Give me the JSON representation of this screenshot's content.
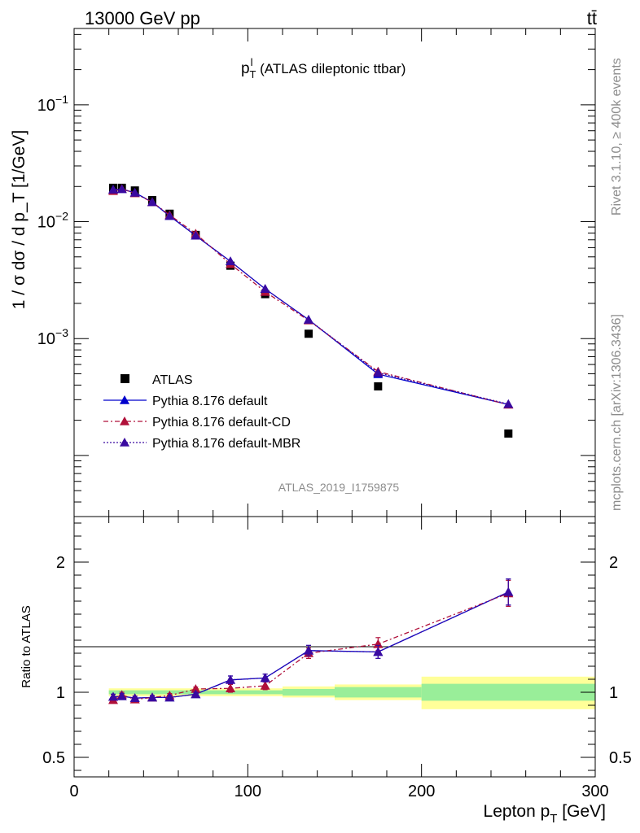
{
  "header": {
    "process": "13000 GeV pp",
    "channel": "tt̄"
  },
  "side_labels": {
    "rivet": "Rivet 3.1.10, ≥ 400k events",
    "mcplots": "mcplots.cern.ch [arXiv:1306.3436]"
  },
  "analysis_id": "ATLAS_2019_I1759875",
  "chart_data": [
    {
      "type": "line",
      "panel": "main",
      "title_main": "p",
      "title_sup": "l",
      "title_sub": "T",
      "title_rest": " (ATLAS dileptonic ttbar)",
      "ylabel": "1 / σ  dσ / d p_T [1/GeV]",
      "yscale": "log",
      "ylim": [
        3e-05,
        0.45
      ],
      "xlim": [
        0,
        300
      ],
      "yticks": [
        {
          "value": 0.1,
          "base": "10",
          "exp": "−1"
        },
        {
          "value": 0.01,
          "base": "10",
          "exp": "−2"
        },
        {
          "value": 0.001,
          "base": "10",
          "exp": "−3"
        }
      ],
      "legend_position": "lower-left",
      "series": [
        {
          "name": "ATLAS",
          "style": "data-square",
          "color": "#000000",
          "x": [
            22.5,
            27.5,
            35,
            45,
            55,
            70,
            90,
            110,
            135,
            175,
            250
          ],
          "y": [
            0.0195,
            0.0195,
            0.0185,
            0.0153,
            0.0117,
            0.0077,
            0.0042,
            0.0024,
            0.0011,
            0.00039,
            0.000154
          ]
        },
        {
          "name": "Pythia 8.176 default",
          "style": "solid",
          "color": "#0000cc",
          "x": [
            22.5,
            27.5,
            35,
            45,
            55,
            70,
            90,
            110,
            135,
            175,
            250
          ],
          "y": [
            0.0188,
            0.019,
            0.0177,
            0.0147,
            0.0112,
            0.0076,
            0.00458,
            0.00266,
            0.00145,
            0.000496,
            0.000273
          ]
        },
        {
          "name": "Pythia 8.176 default-CD",
          "style": "dashdot",
          "color": "#b0103a",
          "x": [
            22.5,
            27.5,
            35,
            45,
            55,
            70,
            90,
            110,
            135,
            175,
            250
          ],
          "y": [
            0.0183,
            0.0191,
            0.0175,
            0.0147,
            0.0114,
            0.0079,
            0.00434,
            0.00251,
            0.00143,
            0.000522,
            0.000272
          ]
        },
        {
          "name": "Pythia 8.176 default-MBR",
          "style": "dotted",
          "color": "#3a0aa0",
          "x": [
            22.5,
            27.5,
            35,
            45,
            55,
            70,
            90,
            110,
            135,
            175,
            250
          ],
          "y": [
            0.0188,
            0.019,
            0.0177,
            0.0147,
            0.0112,
            0.0076,
            0.00458,
            0.00266,
            0.00145,
            0.00051,
            0.000275
          ]
        }
      ]
    },
    {
      "type": "line",
      "panel": "ratio",
      "ylabel": "Ratio to ATLAS",
      "xlabel_main": "Lepton p",
      "xlabel_sub": "T",
      "xlabel_rest": " [GeV]",
      "ylim": [
        0.35,
        2.35
      ],
      "xlim": [
        0,
        300
      ],
      "xticks": [
        0,
        100,
        200,
        300
      ],
      "yticks": [
        0.5,
        1,
        2
      ],
      "band_color_outer": "#ffff99",
      "band_color_inner": "#99ee99",
      "bands": [
        {
          "x0": 20,
          "x1": 120,
          "inner": [
            0.985,
            1.015
          ],
          "outer": [
            0.97,
            1.03
          ]
        },
        {
          "x0": 120,
          "x1": 150,
          "inner": [
            0.975,
            1.025
          ],
          "outer": [
            0.96,
            1.045
          ]
        },
        {
          "x0": 150,
          "x1": 200,
          "inner": [
            0.96,
            1.04
          ],
          "outer": [
            0.94,
            1.06
          ]
        },
        {
          "x0": 200,
          "x1": 300,
          "inner": [
            0.935,
            1.065
          ],
          "outer": [
            0.87,
            1.12
          ]
        }
      ],
      "series": [
        {
          "name": "Pythia 8.176 default",
          "style": "solid",
          "color": "#0000cc",
          "x": [
            22.5,
            27.5,
            35,
            45,
            55,
            70,
            90,
            110,
            135,
            175,
            250
          ],
          "y": [
            0.965,
            0.97,
            0.955,
            0.96,
            0.96,
            0.985,
            1.095,
            1.11,
            1.32,
            1.31,
            1.77
          ],
          "err": [
            0.02,
            0.02,
            0.015,
            0.015,
            0.015,
            0.015,
            0.03,
            0.03,
            0.04,
            0.05,
            0.1
          ]
        },
        {
          "name": "Pythia 8.176 default-CD",
          "style": "dashdot",
          "color": "#b0103a",
          "x": [
            22.5,
            27.5,
            35,
            45,
            55,
            70,
            90,
            110,
            135,
            175,
            250
          ],
          "y": [
            0.94,
            0.98,
            0.945,
            0.96,
            0.975,
            1.025,
            1.03,
            1.05,
            1.3,
            1.37,
            1.76
          ],
          "err": [
            0.02,
            0.02,
            0.015,
            0.015,
            0.015,
            0.015,
            0.03,
            0.03,
            0.04,
            0.05,
            0.1
          ]
        },
        {
          "name": "Pythia 8.176 default-MBR",
          "style": "dotted",
          "color": "#3a0aa0",
          "x": [
            22.5,
            27.5,
            35,
            45,
            55,
            70,
            90,
            110,
            135,
            175,
            250
          ],
          "y": [
            0.965,
            0.97,
            0.955,
            0.96,
            0.96,
            0.985,
            1.095,
            1.11,
            1.32,
            1.31,
            1.77
          ],
          "err": [
            0.02,
            0.02,
            0.015,
            0.015,
            0.015,
            0.015,
            0.03,
            0.03,
            0.04,
            0.05,
            0.1
          ]
        }
      ]
    }
  ]
}
